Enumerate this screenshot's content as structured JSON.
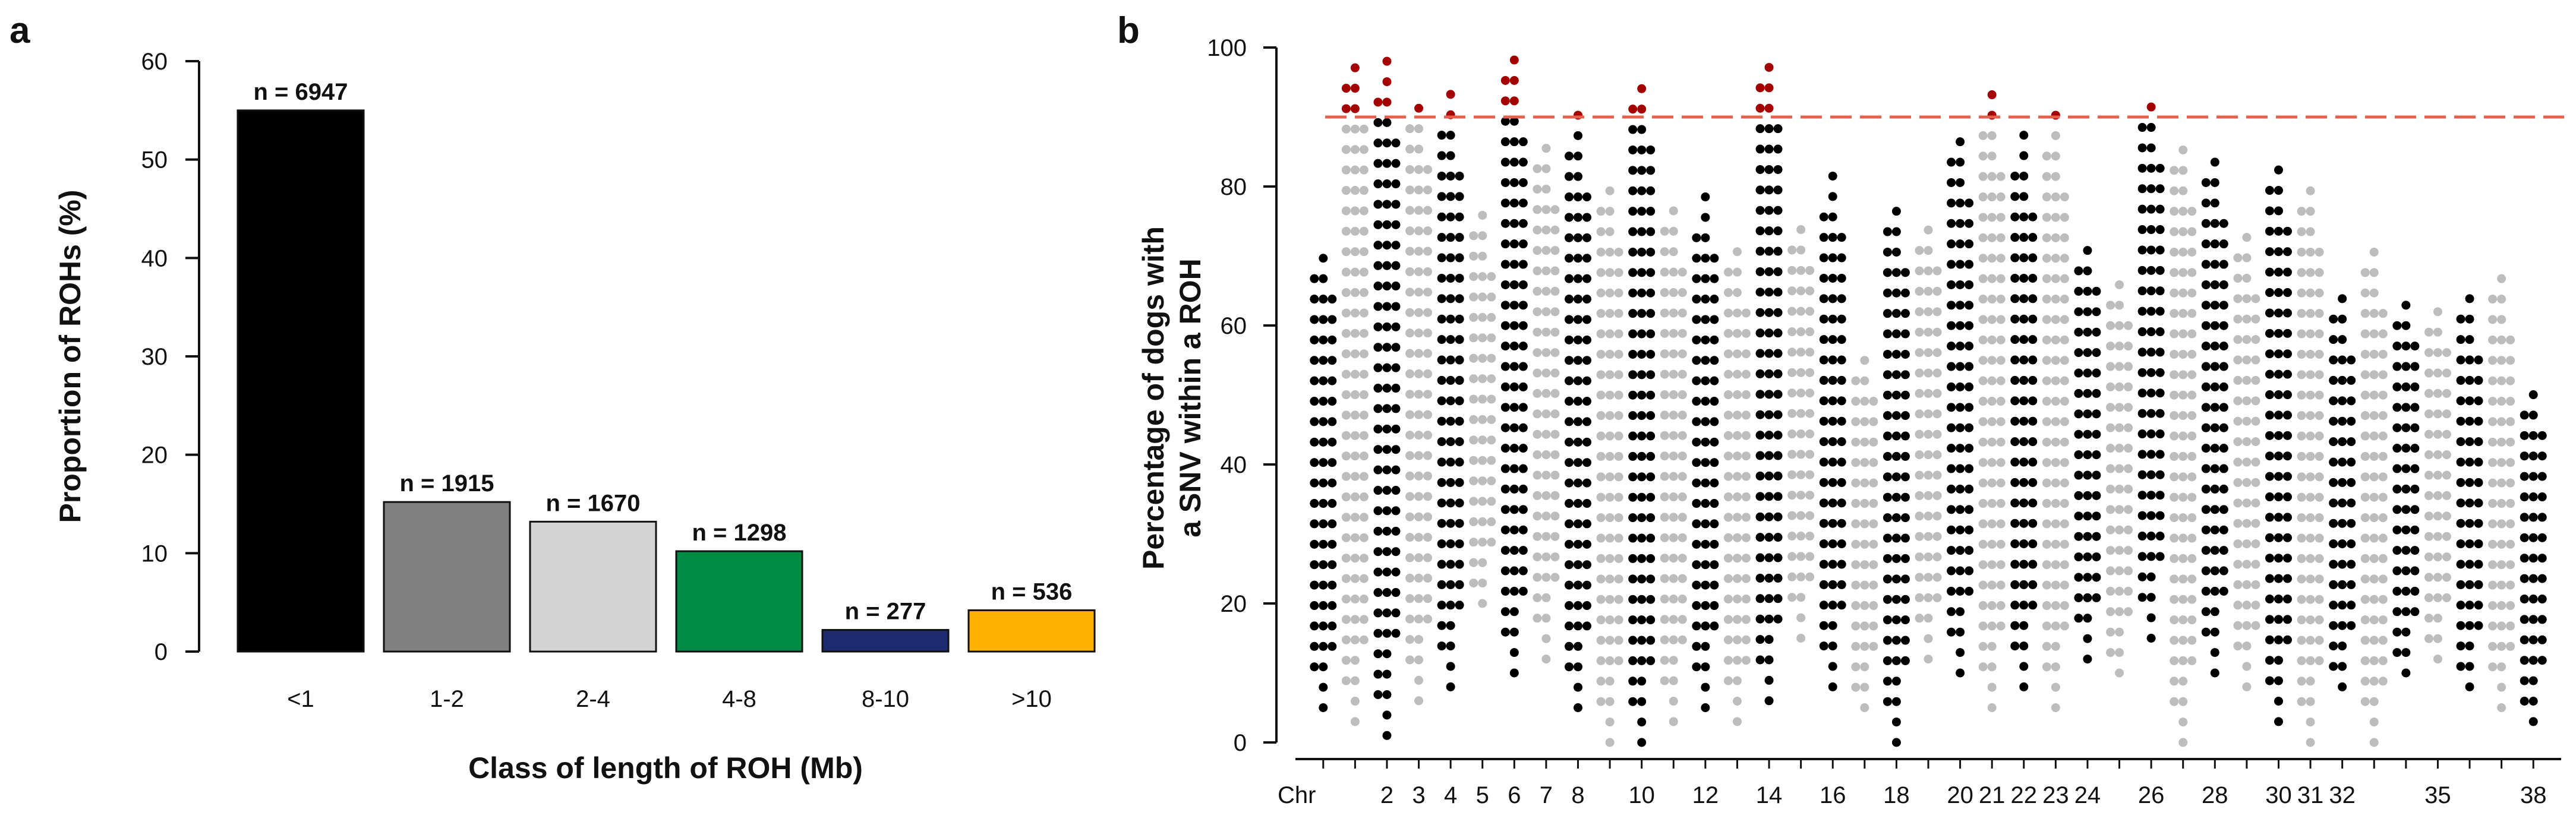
{
  "figure": {
    "panel_a": "a",
    "panel_b": "b"
  },
  "chart_data": [
    {
      "panel": "a",
      "type": "bar",
      "categories": [
        "<1",
        "1-2",
        "2-4",
        "4-8",
        "8-10",
        ">10"
      ],
      "values": [
        55,
        15.2,
        13.2,
        10.2,
        2.2,
        4.2
      ],
      "counts": [
        "n = 6947",
        "n = 1915",
        "n = 1670",
        "n = 1298",
        "n = 277",
        "n = 536"
      ],
      "colors": [
        "#000000",
        "#808080",
        "#d3d3d3",
        "#008b45",
        "#1c2a6e",
        "#ffb100"
      ],
      "ylabel": "Proportion of ROHs (%)",
      "xlabel": "Class of length of ROH (Mb)",
      "ylim": [
        0,
        60
      ],
      "yticks": [
        "0",
        "10",
        "20",
        "30",
        "40",
        "50",
        "60"
      ]
    },
    {
      "panel": "b",
      "type": "scatter",
      "ylabel": [
        "Percentage of dogs with",
        "a SNV within a ROH"
      ],
      "xlabel_prefix": "Chr",
      "ylim": [
        0,
        100
      ],
      "yticks": [
        "0",
        "20",
        "40",
        "60",
        "80",
        "100"
      ],
      "threshold": 90,
      "threshold_color": "#e8604c",
      "highlight_color": "#a40000",
      "colors": [
        "#000000",
        "#bdbdbd"
      ],
      "chromosomes": [
        {
          "label": "",
          "min": 5,
          "max": 72
        },
        {
          "label": "",
          "min": 3,
          "max": 100
        },
        {
          "label": "2",
          "min": 1,
          "max": 100
        },
        {
          "label": "3",
          "min": 6,
          "max": 94
        },
        {
          "label": "4",
          "min": 8,
          "max": 94
        },
        {
          "label": "5",
          "min": 20,
          "max": 76
        },
        {
          "label": "6",
          "min": 10,
          "max": 100
        },
        {
          "label": "7",
          "min": 12,
          "max": 88
        },
        {
          "label": "8",
          "min": 5,
          "max": 91
        },
        {
          "label": "",
          "min": 0,
          "max": 82
        },
        {
          "label": "10",
          "min": 0,
          "max": 97
        },
        {
          "label": "",
          "min": 3,
          "max": 79
        },
        {
          "label": "12",
          "min": 5,
          "max": 79
        },
        {
          "label": "",
          "min": 3,
          "max": 73
        },
        {
          "label": "14",
          "min": 6,
          "max": 100
        },
        {
          "label": "",
          "min": 15,
          "max": 76
        },
        {
          "label": "16",
          "min": 8,
          "max": 82
        },
        {
          "label": "",
          "min": 5,
          "max": 56
        },
        {
          "label": "18",
          "min": 0,
          "max": 79
        },
        {
          "label": "",
          "min": 12,
          "max": 76
        },
        {
          "label": "20",
          "min": 10,
          "max": 88
        },
        {
          "label": "21",
          "min": 5,
          "max": 94
        },
        {
          "label": "22",
          "min": 8,
          "max": 88
        },
        {
          "label": "23",
          "min": 5,
          "max": 91
        },
        {
          "label": "24",
          "min": 12,
          "max": 73
        },
        {
          "label": "",
          "min": 10,
          "max": 67
        },
        {
          "label": "26",
          "min": 15,
          "max": 94
        },
        {
          "label": "",
          "min": 0,
          "max": 88
        },
        {
          "label": "28",
          "min": 10,
          "max": 85
        },
        {
          "label": "",
          "min": 8,
          "max": 73
        },
        {
          "label": "30",
          "min": 3,
          "max": 85
        },
        {
          "label": "31",
          "min": 0,
          "max": 82
        },
        {
          "label": "32",
          "min": 8,
          "max": 64
        },
        {
          "label": "",
          "min": 0,
          "max": 73
        },
        {
          "label": "",
          "min": 10,
          "max": 64
        },
        {
          "label": "35",
          "min": 12,
          "max": 64
        },
        {
          "label": "",
          "min": 8,
          "max": 64
        },
        {
          "label": "",
          "min": 5,
          "max": 67
        },
        {
          "label": "38",
          "min": 3,
          "max": 52
        }
      ]
    }
  ]
}
